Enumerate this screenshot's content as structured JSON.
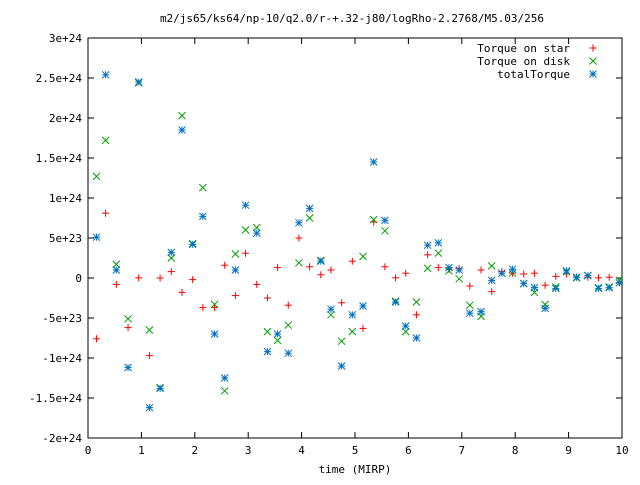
{
  "chart_data": {
    "type": "scatter",
    "title": "m2/js65/ks64/np-10/q2.0/r-+.32-j80/logRho-2.2768/M5.03/256",
    "xlabel": "time (MIRP)",
    "ylabel": "",
    "xlim": [
      0,
      10
    ],
    "ylim": [
      -2e+24,
      3e+24
    ],
    "x_ticks": [
      {
        "value": 0,
        "label": "0"
      },
      {
        "value": 1,
        "label": "1"
      },
      {
        "value": 2,
        "label": "2"
      },
      {
        "value": 3,
        "label": "3"
      },
      {
        "value": 4,
        "label": "4"
      },
      {
        "value": 5,
        "label": "5"
      },
      {
        "value": 6,
        "label": "6"
      },
      {
        "value": 7,
        "label": "7"
      },
      {
        "value": 8,
        "label": "8"
      },
      {
        "value": 9,
        "label": "9"
      },
      {
        "value": 10,
        "label": "10"
      }
    ],
    "y_ticks": [
      {
        "value": -2e+24,
        "label": "-2e+24"
      },
      {
        "value": -1.5e+24,
        "label": "-1.5e+24"
      },
      {
        "value": -1e+24,
        "label": "-1e+24"
      },
      {
        "value": -5e+23,
        "label": "-5e+23"
      },
      {
        "value": 0,
        "label": "0"
      },
      {
        "value": 5e+23,
        "label": "5e+23"
      },
      {
        "value": 1e+24,
        "label": "1e+24"
      },
      {
        "value": 1.5e+24,
        "label": "1.5e+24"
      },
      {
        "value": 2e+24,
        "label": "2e+24"
      },
      {
        "value": 2.5e+24,
        "label": "2.5e+24"
      },
      {
        "value": 3e+24,
        "label": "3e+24"
      }
    ],
    "grid": false,
    "legend_position": "top-right",
    "series": [
      {
        "name": "Torque on star",
        "marker": "plus",
        "color": "#ff0000",
        "x": [
          0.16,
          0.33,
          0.53,
          0.75,
          0.95,
          1.15,
          1.35,
          1.56,
          1.76,
          1.96,
          2.15,
          2.37,
          2.56,
          2.76,
          2.95,
          3.16,
          3.36,
          3.55,
          3.75,
          3.95,
          4.15,
          4.36,
          4.55,
          4.75,
          4.95,
          5.15,
          5.35,
          5.56,
          5.76,
          5.95,
          6.15,
          6.36,
          6.56,
          6.76,
          6.95,
          7.15,
          7.36,
          7.56,
          7.75,
          7.95,
          8.16,
          8.36,
          8.56,
          8.76,
          8.96,
          9.15,
          9.36,
          9.56,
          9.76,
          9.95
        ],
        "y": [
          -7.6e+23,
          8.1e+23,
          -8e+22,
          -6.2e+23,
          2e+21,
          -9.7e+23,
          0,
          8e+22,
          -1.8e+23,
          -2e+22,
          -3.7e+23,
          -3.7e+23,
          1.6e+23,
          -2.2e+23,
          3.1e+23,
          -8e+22,
          -2.5e+23,
          1.3e+23,
          -3.4e+23,
          5e+23,
          1.4e+23,
          4e+22,
          1e+23,
          -3.1e+23,
          2.1e+23,
          -6.3e+23,
          7e+23,
          1.4e+23,
          2e+21,
          6e+22,
          -4.6e+23,
          2.9e+23,
          1.3e+23,
          1.1e+23,
          1.2e+23,
          -1e+23,
          1e+23,
          -1.7e+23,
          8e+22,
          6e+22,
          5e+22,
          6e+22,
          -9e+22,
          2e+22,
          5e+22,
          1e+22,
          1e+22,
          2e+21,
          1e+22,
          -6e+22
        ]
      },
      {
        "name": "Torque on disk",
        "marker": "cross",
        "color": "#00a000",
        "x": [
          0.16,
          0.33,
          0.53,
          0.75,
          0.95,
          1.15,
          1.35,
          1.56,
          1.76,
          1.96,
          2.15,
          2.37,
          2.56,
          2.76,
          2.95,
          3.16,
          3.36,
          3.55,
          3.75,
          3.95,
          4.15,
          4.36,
          4.55,
          4.75,
          4.95,
          5.15,
          5.35,
          5.56,
          5.76,
          5.95,
          6.15,
          6.36,
          6.56,
          6.76,
          6.95,
          7.15,
          7.36,
          7.56,
          7.75,
          7.95,
          8.16,
          8.36,
          8.56,
          8.76,
          8.96,
          9.15,
          9.36,
          9.56,
          9.76,
          9.95
        ],
        "y": [
          1.27e+24,
          1.72e+24,
          1.7e+23,
          -5.1e+23,
          2.44e+24,
          -6.5e+23,
          -1.37e+24,
          2.5e+23,
          2.03e+24,
          4.3e+23,
          1.13e+24,
          -3.3e+23,
          -1.41e+24,
          3e+23,
          6e+23,
          6.3e+23,
          -6.7e+23,
          -7.8e+23,
          -5.9e+23,
          1.9e+23,
          7.5e+23,
          2.2e+23,
          -4.6e+23,
          -7.9e+23,
          -6.7e+23,
          2.7e+23,
          7.3e+23,
          5.9e+23,
          -2.9e+23,
          -6.7e+23,
          -3e+23,
          1.2e+23,
          3.1e+23,
          9e+22,
          -1e+22,
          -3.4e+23,
          -4.8e+23,
          1.5e+23,
          6e+22,
          6e+22,
          -7e+22,
          -1.8e+23,
          -3.3e+23,
          -1.1e+23,
          8e+22,
          2e+21,
          3e+22,
          -1.2e+23,
          -1.1e+23,
          -3e+22
        ]
      },
      {
        "name": "totalTorque",
        "marker": "star",
        "color": "#0070c0",
        "x": [
          0.16,
          0.33,
          0.53,
          0.75,
          0.95,
          1.15,
          1.35,
          1.56,
          1.76,
          1.96,
          2.15,
          2.37,
          2.56,
          2.76,
          2.95,
          3.16,
          3.36,
          3.55,
          3.75,
          3.95,
          4.15,
          4.36,
          4.55,
          4.75,
          4.95,
          5.15,
          5.35,
          5.56,
          5.76,
          5.95,
          6.15,
          6.36,
          6.56,
          6.76,
          6.95,
          7.15,
          7.36,
          7.56,
          7.75,
          7.95,
          8.16,
          8.36,
          8.56,
          8.76,
          8.96,
          9.15,
          9.36,
          9.56,
          9.76,
          9.95
        ],
        "y": [
          5.1e+23,
          2.54e+24,
          1e+23,
          -1.12e+24,
          2.45e+24,
          -1.62e+24,
          -1.38e+24,
          3.2e+23,
          1.85e+24,
          4.2e+23,
          7.7e+23,
          -7e+23,
          -1.25e+24,
          1e+23,
          9.1e+23,
          5.6e+23,
          -9.2e+23,
          -7e+23,
          -9.4e+23,
          6.9e+23,
          8.7e+23,
          2.1e+23,
          -3.9e+23,
          -1.1e+24,
          -4.6e+23,
          -3.5e+23,
          1.45e+24,
          7.2e+23,
          -3e+23,
          -6e+23,
          -7.5e+23,
          4.1e+23,
          4.4e+23,
          1.3e+23,
          1e+23,
          -4.4e+23,
          -4.2e+23,
          -3e+22,
          6e+22,
          1.1e+23,
          -7e+22,
          -1.2e+23,
          -3.8e+23,
          -1.3e+23,
          9e+22,
          1e+22,
          3e+22,
          -1.3e+23,
          -1.2e+23,
          -6e+22
        ]
      }
    ]
  }
}
